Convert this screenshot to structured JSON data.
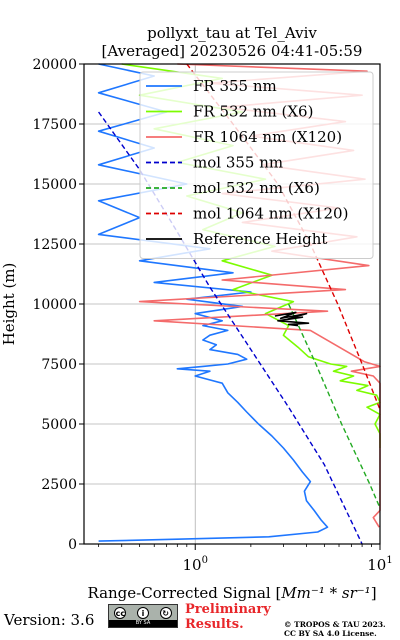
{
  "chart_data": {
    "type": "line",
    "title": "pollyxt_tau at Tel_Aviv",
    "subtitle": "[Averaged] 20230526 04:41-05:59",
    "xlabel_prefix": "Range-Corrected Signal [",
    "xlabel_math": "Mm⁻¹ * sr⁻¹",
    "xlabel_suffix": "]",
    "ylabel": "Height (m)",
    "x_scale": "log",
    "xlim": [
      0.25,
      10
    ],
    "ylim": [
      0,
      20000
    ],
    "x_ticks": [
      {
        "value": 1,
        "base": "10",
        "exp": "0"
      },
      {
        "value": 10,
        "base": "10",
        "exp": "1"
      }
    ],
    "y_ticks": [
      0,
      2500,
      5000,
      7500,
      10000,
      12500,
      15000,
      17500,
      20000
    ],
    "grid": true,
    "legend_position": "upper-right",
    "series": [
      {
        "name": "FR 355 nm",
        "color": "#1f77ff",
        "style": "solid",
        "points": [
          [
            0.3,
            20000
          ],
          [
            0.6,
            19500
          ],
          [
            0.3,
            18800
          ],
          [
            0.7,
            18000
          ],
          [
            0.3,
            17200
          ],
          [
            0.6,
            16500
          ],
          [
            0.3,
            15800
          ],
          [
            0.9,
            15000
          ],
          [
            0.3,
            14300
          ],
          [
            0.5,
            13600
          ],
          [
            0.3,
            12900
          ],
          [
            1.2,
            12300
          ],
          [
            0.5,
            11800
          ],
          [
            1.6,
            11300
          ],
          [
            0.6,
            10900
          ],
          [
            2.0,
            10500
          ],
          [
            0.9,
            10200
          ],
          [
            1.8,
            9900
          ],
          [
            1.0,
            9600
          ],
          [
            1.4,
            9300
          ],
          [
            1.1,
            9100
          ],
          [
            1.5,
            8900
          ],
          [
            1.2,
            8700
          ],
          [
            1.1,
            8500
          ],
          [
            1.3,
            8300
          ],
          [
            1.2,
            8100
          ],
          [
            1.7,
            7900
          ],
          [
            1.9,
            7700
          ],
          [
            1.5,
            7500
          ],
          [
            1.1,
            7400
          ],
          [
            0.8,
            7300
          ],
          [
            1.2,
            7200
          ],
          [
            1.0,
            7000
          ],
          [
            1.4,
            6700
          ],
          [
            1.5,
            6300
          ],
          [
            1.7,
            5900
          ],
          [
            1.9,
            5500
          ],
          [
            2.2,
            5000
          ],
          [
            2.6,
            4500
          ],
          [
            3.0,
            4000
          ],
          [
            3.4,
            3500
          ],
          [
            3.8,
            3000
          ],
          [
            4.2,
            2600
          ],
          [
            3.9,
            2200
          ],
          [
            4.0,
            1800
          ],
          [
            4.4,
            1400
          ],
          [
            4.8,
            1000
          ],
          [
            5.2,
            700
          ],
          [
            4.6,
            500
          ],
          [
            2.5,
            300
          ],
          [
            0.8,
            200
          ],
          [
            0.3,
            120
          ]
        ]
      },
      {
        "name": "FR 532 nm (X6)",
        "color": "#7cfc00",
        "style": "solid",
        "points": [
          [
            0.4,
            20000
          ],
          [
            1.4,
            19400
          ],
          [
            0.5,
            18700
          ],
          [
            1.8,
            18000
          ],
          [
            0.6,
            17300
          ],
          [
            1.6,
            16600
          ],
          [
            0.8,
            15900
          ],
          [
            2.4,
            15200
          ],
          [
            0.9,
            14500
          ],
          [
            1.8,
            13800
          ],
          [
            1.1,
            13100
          ],
          [
            2.7,
            12400
          ],
          [
            1.4,
            11800
          ],
          [
            2.6,
            11200
          ],
          [
            1.6,
            10600
          ],
          [
            3.4,
            10100
          ],
          [
            2.4,
            9600
          ],
          [
            3.2,
            9100
          ],
          [
            3.0,
            8700
          ],
          [
            3.6,
            8200
          ],
          [
            4.1,
            7800
          ],
          [
            5.4,
            7500
          ],
          [
            6.6,
            7400
          ],
          [
            5.6,
            7200
          ],
          [
            7.2,
            7000
          ],
          [
            6.1,
            6800
          ],
          [
            8.6,
            6600
          ],
          [
            7.5,
            6400
          ],
          [
            9.6,
            6200
          ],
          [
            10,
            5900
          ],
          [
            8.5,
            5700
          ],
          [
            10,
            5400
          ],
          [
            9.4,
            5000
          ],
          [
            10,
            4600
          ],
          [
            10,
            4000
          ]
        ]
      },
      {
        "name": "FR 1064 nm (X120)",
        "color": "#f46b6b",
        "style": "solid",
        "points": [
          [
            0.8,
            20000
          ],
          [
            8.5,
            19700
          ],
          [
            1.2,
            19200
          ],
          [
            8.0,
            18700
          ],
          [
            1.4,
            18200
          ],
          [
            6.5,
            17600
          ],
          [
            2.0,
            17000
          ],
          [
            7.2,
            16400
          ],
          [
            2.3,
            15800
          ],
          [
            8.3,
            15200
          ],
          [
            1.4,
            14600
          ],
          [
            6.0,
            14000
          ],
          [
            1.8,
            13400
          ],
          [
            7.5,
            12800
          ],
          [
            2.6,
            12200
          ],
          [
            8.7,
            11600
          ],
          [
            1.4,
            11000
          ],
          [
            6.5,
            10600
          ],
          [
            0.5,
            10100
          ],
          [
            5.2,
            9700
          ],
          [
            0.6,
            9300
          ],
          [
            4.2,
            8900
          ],
          [
            8.2,
            7600
          ],
          [
            10,
            7400
          ],
          [
            7.0,
            7200
          ],
          [
            9.2,
            7000
          ],
          [
            10,
            6700
          ],
          [
            10,
            1400
          ],
          [
            9.2,
            1100
          ],
          [
            9.9,
            700
          ]
        ]
      },
      {
        "name": "mol 355 nm",
        "color": "#0000cd",
        "style": "dashed",
        "points": [
          [
            0.3,
            18000
          ],
          [
            0.5,
            15600
          ],
          [
            0.8,
            13000
          ],
          [
            1.2,
            10700
          ],
          [
            2.0,
            8100
          ],
          [
            3.2,
            5700
          ],
          [
            5.0,
            3300
          ],
          [
            8.0,
            0
          ]
        ]
      },
      {
        "name": "mol 532 nm (X6)",
        "color": "#22aa22",
        "style": "dashed",
        "points": [
          [
            3.2,
            10000
          ],
          [
            4.5,
            7500
          ],
          [
            6.2,
            5000
          ],
          [
            8.8,
            2500
          ],
          [
            10,
            1500
          ]
        ]
      },
      {
        "name": "mol 1064 nm (X120)",
        "color": "#dd0000",
        "style": "dashed",
        "points": [
          [
            0.9,
            20000
          ],
          [
            1.6,
            17500
          ],
          [
            2.8,
            15000
          ],
          [
            4.2,
            12500
          ],
          [
            5.9,
            10000
          ],
          [
            8.0,
            7500
          ],
          [
            10,
            5600
          ]
        ]
      },
      {
        "name": "Reference Height",
        "color": "#000000",
        "style": "solid",
        "points": [
          [
            2.7,
            9500
          ],
          [
            3.5,
            9650
          ],
          [
            2.9,
            9400
          ],
          [
            4.0,
            9600
          ],
          [
            3.1,
            9350
          ],
          [
            3.8,
            9450
          ],
          [
            2.8,
            9300
          ],
          [
            4.1,
            9200
          ],
          [
            3.2,
            9150
          ],
          [
            3.6,
            9100
          ]
        ]
      }
    ]
  },
  "footer": {
    "version_label": "Version: 3.6",
    "cc_top": "cc ⓘ ⓢ",
    "cc_bottom": "BY   SA",
    "preliminary_line1": "Preliminary",
    "preliminary_line2": "Results.",
    "copyright_line1": "© TROPOS & TAU 2023.",
    "copyright_line2": "CC BY SA 4.0 License."
  },
  "colors": {
    "preliminary": "#e8262a",
    "grid": "#b0b0b0"
  }
}
